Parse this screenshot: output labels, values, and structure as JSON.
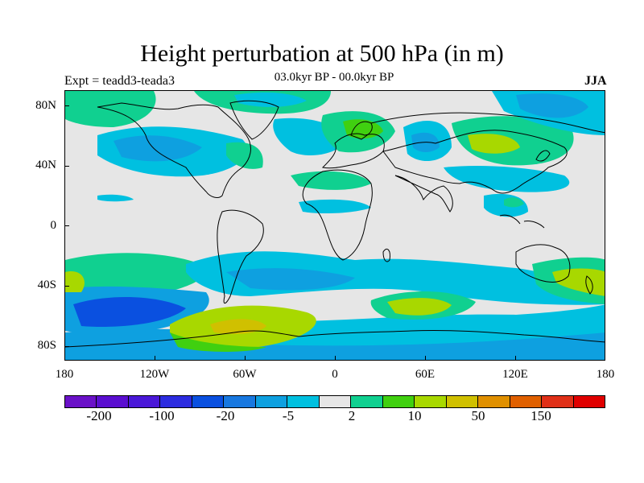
{
  "title": "Height perturbation at 500 hPa (in m)",
  "subtitle": "03.0kyr BP - 00.0kyr BP",
  "left_label": "Expt = teadd3-teada3",
  "right_label": "JJA",
  "lat_labels": [
    "80N",
    "40N",
    "0",
    "40S",
    "80S"
  ],
  "lon_labels": [
    "180",
    "120W",
    "60W",
    "0",
    "60E",
    "120E",
    "180"
  ],
  "colorbar_colors": [
    "#6a11c8",
    "#5a0ed0",
    "#4a18d8",
    "#2c2ce0",
    "#0a50e0",
    "#1878e0",
    "#0ea0e0",
    "#00c0e0",
    "#e6e6e6",
    "#10d090",
    "#40d010",
    "#a8d800",
    "#d0c000",
    "#e09000",
    "#e06000",
    "#e03018",
    "#e00000"
  ],
  "colorbar_labels": [
    "-200",
    "-100",
    "-20",
    "-5",
    "2",
    "10",
    "50",
    "150"
  ]
}
